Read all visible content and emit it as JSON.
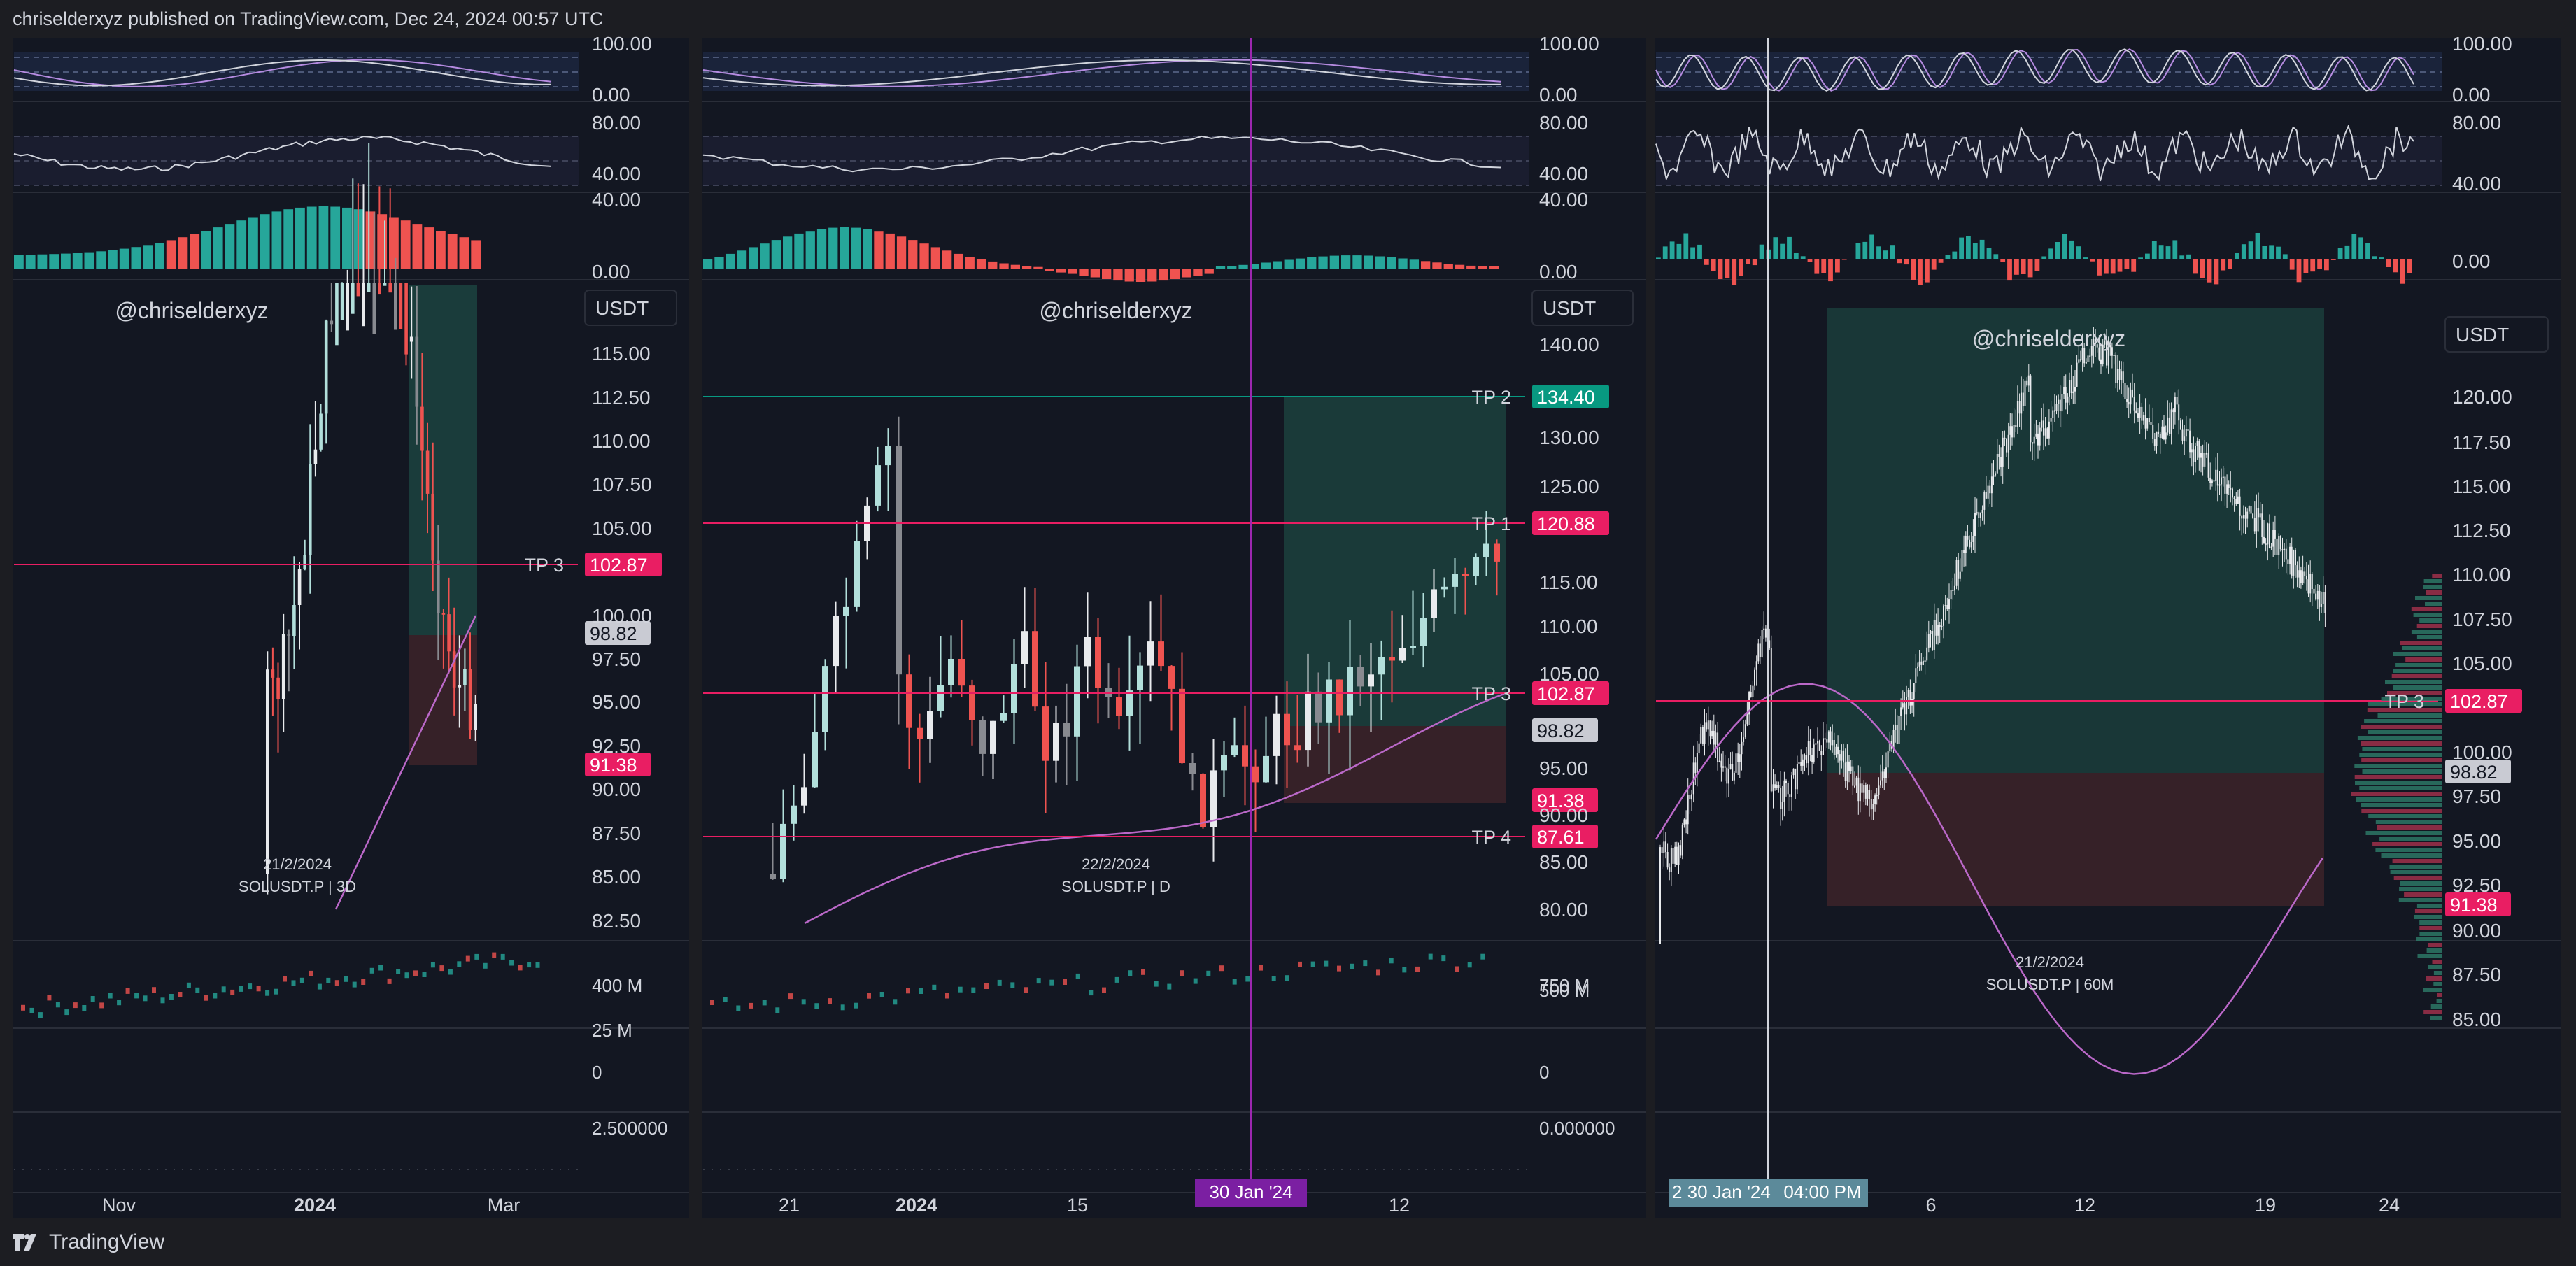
{
  "header": {
    "text": "chriselderxyz published on TradingView.com, Dec 24, 2024 00:57 UTC"
  },
  "footer": {
    "brand": "TradingView",
    "logo_icon": "tradingview-logo-icon"
  },
  "colors": {
    "bg": "#131722",
    "up": "#26a69a",
    "down": "#ef5350",
    "pink": "#e91e63",
    "purple": "#ba68c8",
    "green_zone": "#1e4d46",
    "red_zone": "#3b2229"
  },
  "chart_data": [
    {
      "type": "candlestick",
      "symbol_label": "SOLUSDT.P | 3D",
      "watermark": "@chriselderxyz",
      "date_label": "21/2/2024",
      "currency": "USDT",
      "y_ticks": [
        "115.00",
        "112.50",
        "110.00",
        "107.50",
        "105.00",
        "100.00",
        "97.50",
        "95.00",
        "92.50",
        "90.00",
        "87.50",
        "85.00",
        "82.50"
      ],
      "x_ticks": [
        "Nov",
        "2024",
        "Mar"
      ],
      "level_tags": [
        {
          "label": "TP 3",
          "value": "102.87",
          "color": "#e91e63"
        },
        {
          "label": "",
          "value": "98.82",
          "color": "#c9cbd3"
        },
        {
          "label": "",
          "value": "91.38",
          "color": "#e91e63"
        }
      ],
      "indicator_ticks": {
        "stoch": [
          "100.00",
          "0.00"
        ],
        "rsi": [
          "80.00",
          "40.00"
        ],
        "hist": [
          "40.00",
          "0.00"
        ],
        "volume": [
          "400 M",
          "25 M",
          "0"
        ],
        "extra": [
          "2.500000"
        ]
      }
    },
    {
      "type": "candlestick",
      "symbol_label": "SOLUSDT.P | D",
      "watermark": "@chriselderxyz",
      "date_label": "22/2/2024",
      "currency": "USDT",
      "y_ticks": [
        "140.00",
        "130.00",
        "125.00",
        "115.00",
        "110.00",
        "105.00",
        "95.00",
        "90.00",
        "85.00",
        "80.00"
      ],
      "x_ticks": [
        "21",
        "2024",
        "15",
        "12"
      ],
      "crosshair_date": "30 Jan '24",
      "level_tags": [
        {
          "label": "TP 2",
          "value": "134.40",
          "color": "#089981"
        },
        {
          "label": "TP 1",
          "value": "120.88",
          "color": "#e91e63"
        },
        {
          "label": "TP 3",
          "value": "102.87",
          "color": "#e91e63"
        },
        {
          "label": "",
          "value": "98.82",
          "color": "#c9cbd3"
        },
        {
          "label": "",
          "value": "91.38",
          "color": "#e91e63"
        },
        {
          "label": "TP 4",
          "value": "87.61",
          "color": "#e91e63"
        }
      ],
      "indicator_ticks": {
        "stoch": [
          "100.00",
          "0.00"
        ],
        "rsi": [
          "80.00",
          "40.00"
        ],
        "hist": [
          "40.00",
          "0.00"
        ],
        "volume": [
          "750 M",
          "500 M",
          "0"
        ],
        "extra": [
          "0.000000"
        ]
      }
    },
    {
      "type": "candlestick",
      "symbol_label": "SOLUSDT.P | 60M",
      "watermark": "@chriselderxyz",
      "date_label": "21/2/2024",
      "currency": "USDT",
      "y_ticks": [
        "120.00",
        "117.50",
        "115.00",
        "112.50",
        "110.00",
        "107.50",
        "105.00",
        "100.00",
        "97.50",
        "95.00",
        "92.50",
        "90.00",
        "87.50",
        "85.00"
      ],
      "x_ticks": [
        "6",
        "12",
        "19",
        "24"
      ],
      "crosshair_date": "2 30 Jan '24",
      "crosshair_time": "04:00 PM",
      "level_tags": [
        {
          "label": "TP 3",
          "value": "102.87",
          "color": "#e91e63"
        },
        {
          "label": "",
          "value": "98.82",
          "color": "#c9cbd3"
        },
        {
          "label": "",
          "value": "91.38",
          "color": "#e91e63"
        }
      ],
      "indicator_ticks": {
        "stoch": [
          "100.00",
          "0.00"
        ],
        "rsi": [
          "80.00",
          "40.00"
        ],
        "hist": [
          "0.00"
        ]
      }
    }
  ]
}
